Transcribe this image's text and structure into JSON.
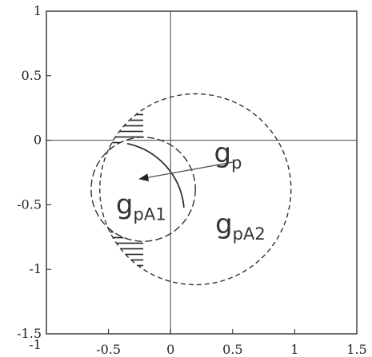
{
  "chart_data": {
    "type": "line",
    "title": "",
    "xlabel": "",
    "ylabel": "",
    "xlim": [
      -1,
      1.5
    ],
    "ylim": [
      -1.5,
      1
    ],
    "xticks": [
      -1,
      -0.5,
      0,
      0.5,
      1,
      1.5
    ],
    "xtick_labels": [
      "-1",
      "-0.5",
      "0",
      "0.5",
      "1",
      "1.5"
    ],
    "yticks": [
      -1.5,
      -1,
      -0.5,
      0,
      0.5,
      1
    ],
    "ytick_labels": [
      "-1.5",
      "-1",
      "-0.5",
      "0",
      "0.5",
      "1"
    ],
    "grid": false,
    "axes_lines": {
      "x": 0,
      "y": 0
    },
    "series": [
      {
        "style": "dashed",
        "shape": "circle",
        "center": [
          0.2,
          -0.38
        ],
        "radius": 0.77
      },
      {
        "style": "dashed",
        "shape": "circle",
        "center": [
          -0.22,
          -0.38
        ],
        "radius": 0.42
      },
      {
        "style": "solid",
        "shape": "arc",
        "center": [
          -0.47,
          -0.57
        ],
        "radius": 0.58,
        "start_deg": 5,
        "end_deg": 78
      }
    ],
    "hatched_region": "crescent between the two dashed circles on the left",
    "annotations": [
      {
        "base": "g",
        "sub": "p",
        "at": [
          0.35,
          -0.17
        ]
      },
      {
        "base": "g",
        "sub": "pA1",
        "at": [
          -0.44,
          -0.57
        ]
      },
      {
        "base": "g",
        "sub": "pA2",
        "at": [
          0.36,
          -0.72
        ]
      }
    ],
    "arrow": {
      "from": [
        0.5,
        -0.17
      ],
      "to": [
        -0.25,
        -0.3
      ]
    }
  }
}
